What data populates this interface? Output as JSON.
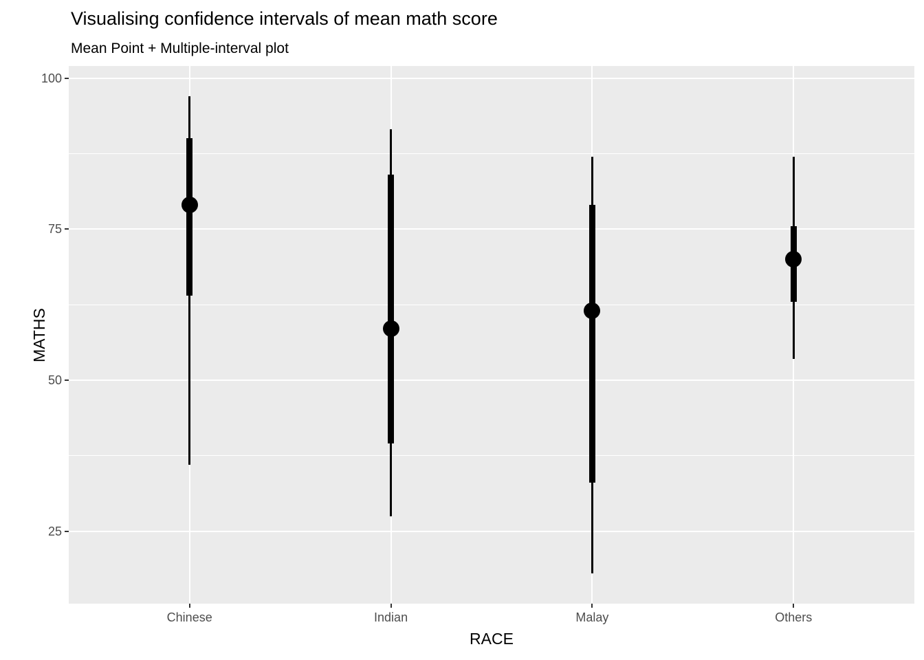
{
  "chart_data": {
    "type": "scatter",
    "variant": "mean point + multiple-interval plot (ggplot stat_pointinterval style)",
    "title": "Visualising confidence intervals of mean math score",
    "subtitle": "Mean Point + Multiple-interval plot",
    "xlabel": "RACE",
    "ylabel": "MATHS",
    "categories": [
      "Chinese",
      "Indian",
      "Malay",
      "Others"
    ],
    "points": [
      {
        "category": "Chinese",
        "mean": 79,
        "thick_interval": [
          64,
          90
        ],
        "thin_interval": [
          36,
          97
        ]
      },
      {
        "category": "Indian",
        "mean": 58.5,
        "thick_interval": [
          39.5,
          84
        ],
        "thin_interval": [
          27.5,
          91.5
        ]
      },
      {
        "category": "Malay",
        "mean": 61.5,
        "thick_interval": [
          33,
          79
        ],
        "thin_interval": [
          18,
          87
        ]
      },
      {
        "category": "Others",
        "mean": 70,
        "thick_interval": [
          63,
          75.5
        ],
        "thin_interval": [
          53.5,
          87
        ]
      }
    ],
    "y_axis": {
      "ticks": [
        100,
        75,
        50,
        25
      ],
      "minor_gridlines": [
        87.5,
        62.5,
        37.5
      ],
      "range": [
        13,
        102
      ]
    },
    "grid": {
      "horizontal_major": true,
      "horizontal_minor": true,
      "vertical_at_categories": true,
      "legend": "none"
    },
    "colors": {
      "panel_background": "#EBEBEB",
      "gridline": "#FFFFFF",
      "data": "#000000",
      "axis_text": "#4D4D4D",
      "tick_mark": "#333333",
      "title_text": "#000000"
    }
  }
}
